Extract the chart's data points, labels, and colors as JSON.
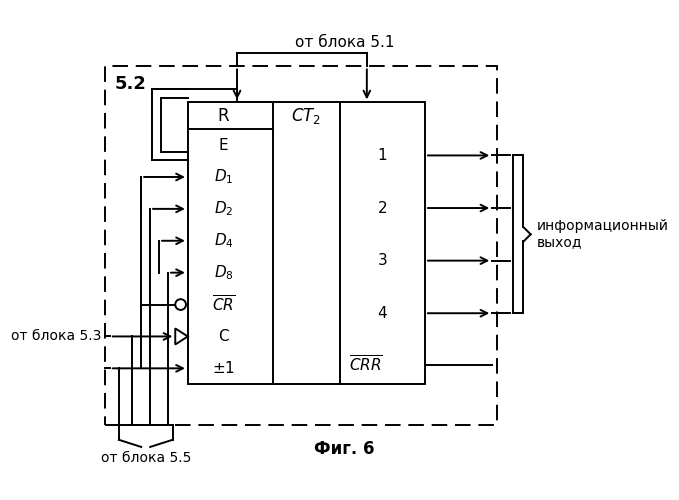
{
  "title": "Фиг. 6",
  "label_52": "5.2",
  "label_from_51": "от блока 5.1",
  "label_from_53": "от блока 5.3",
  "label_from_55": "от блока 5.5",
  "label_info_out": "информационный\nвыход",
  "center_label": "CT2",
  "background_color": "#ffffff",
  "line_color": "#000000"
}
